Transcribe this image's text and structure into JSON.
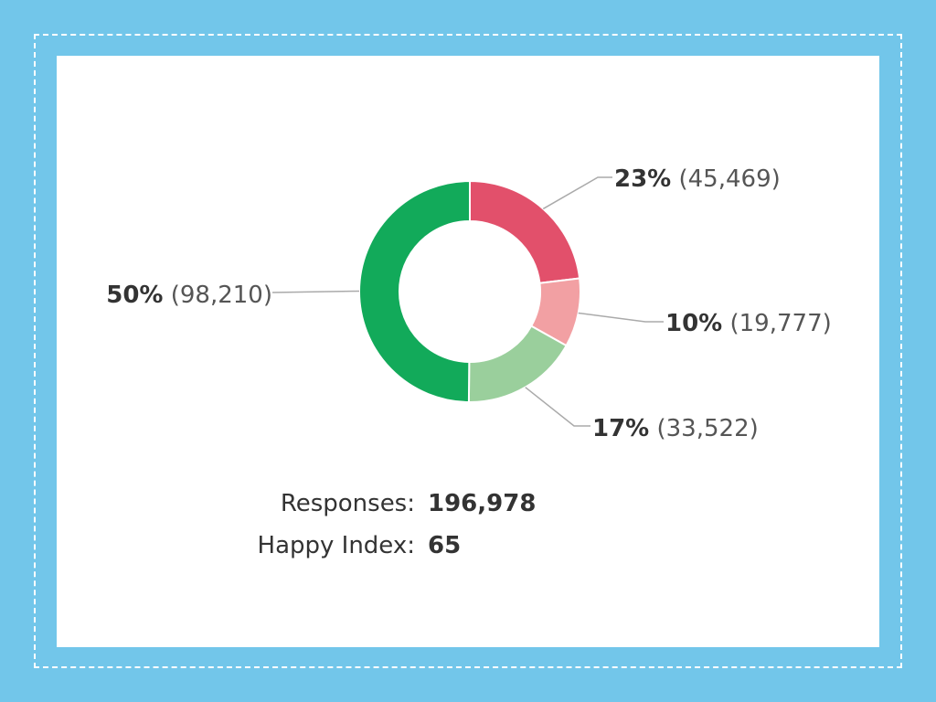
{
  "chart_data": {
    "type": "pie",
    "donut": true,
    "slices": [
      {
        "percent": "23%",
        "count": "(45,469)",
        "value": 45469,
        "color": "#e2506b"
      },
      {
        "percent": "10%",
        "count": "(19,777)",
        "value": 19777,
        "color": "#f2a0a3"
      },
      {
        "percent": "17%",
        "count": "(33,522)",
        "value": 33522,
        "color": "#9acf9c"
      },
      {
        "percent": "50%",
        "count": "(98,210)",
        "value": 98210,
        "color": "#12aa5a"
      }
    ]
  },
  "summary": {
    "responses_label": "Responses:",
    "responses_value": "196,978",
    "happy_label": "Happy Index:",
    "happy_value": "65"
  },
  "colors": {
    "background": "#72c6ea",
    "card": "#ffffff",
    "leader_line": "#aaaaaa"
  }
}
